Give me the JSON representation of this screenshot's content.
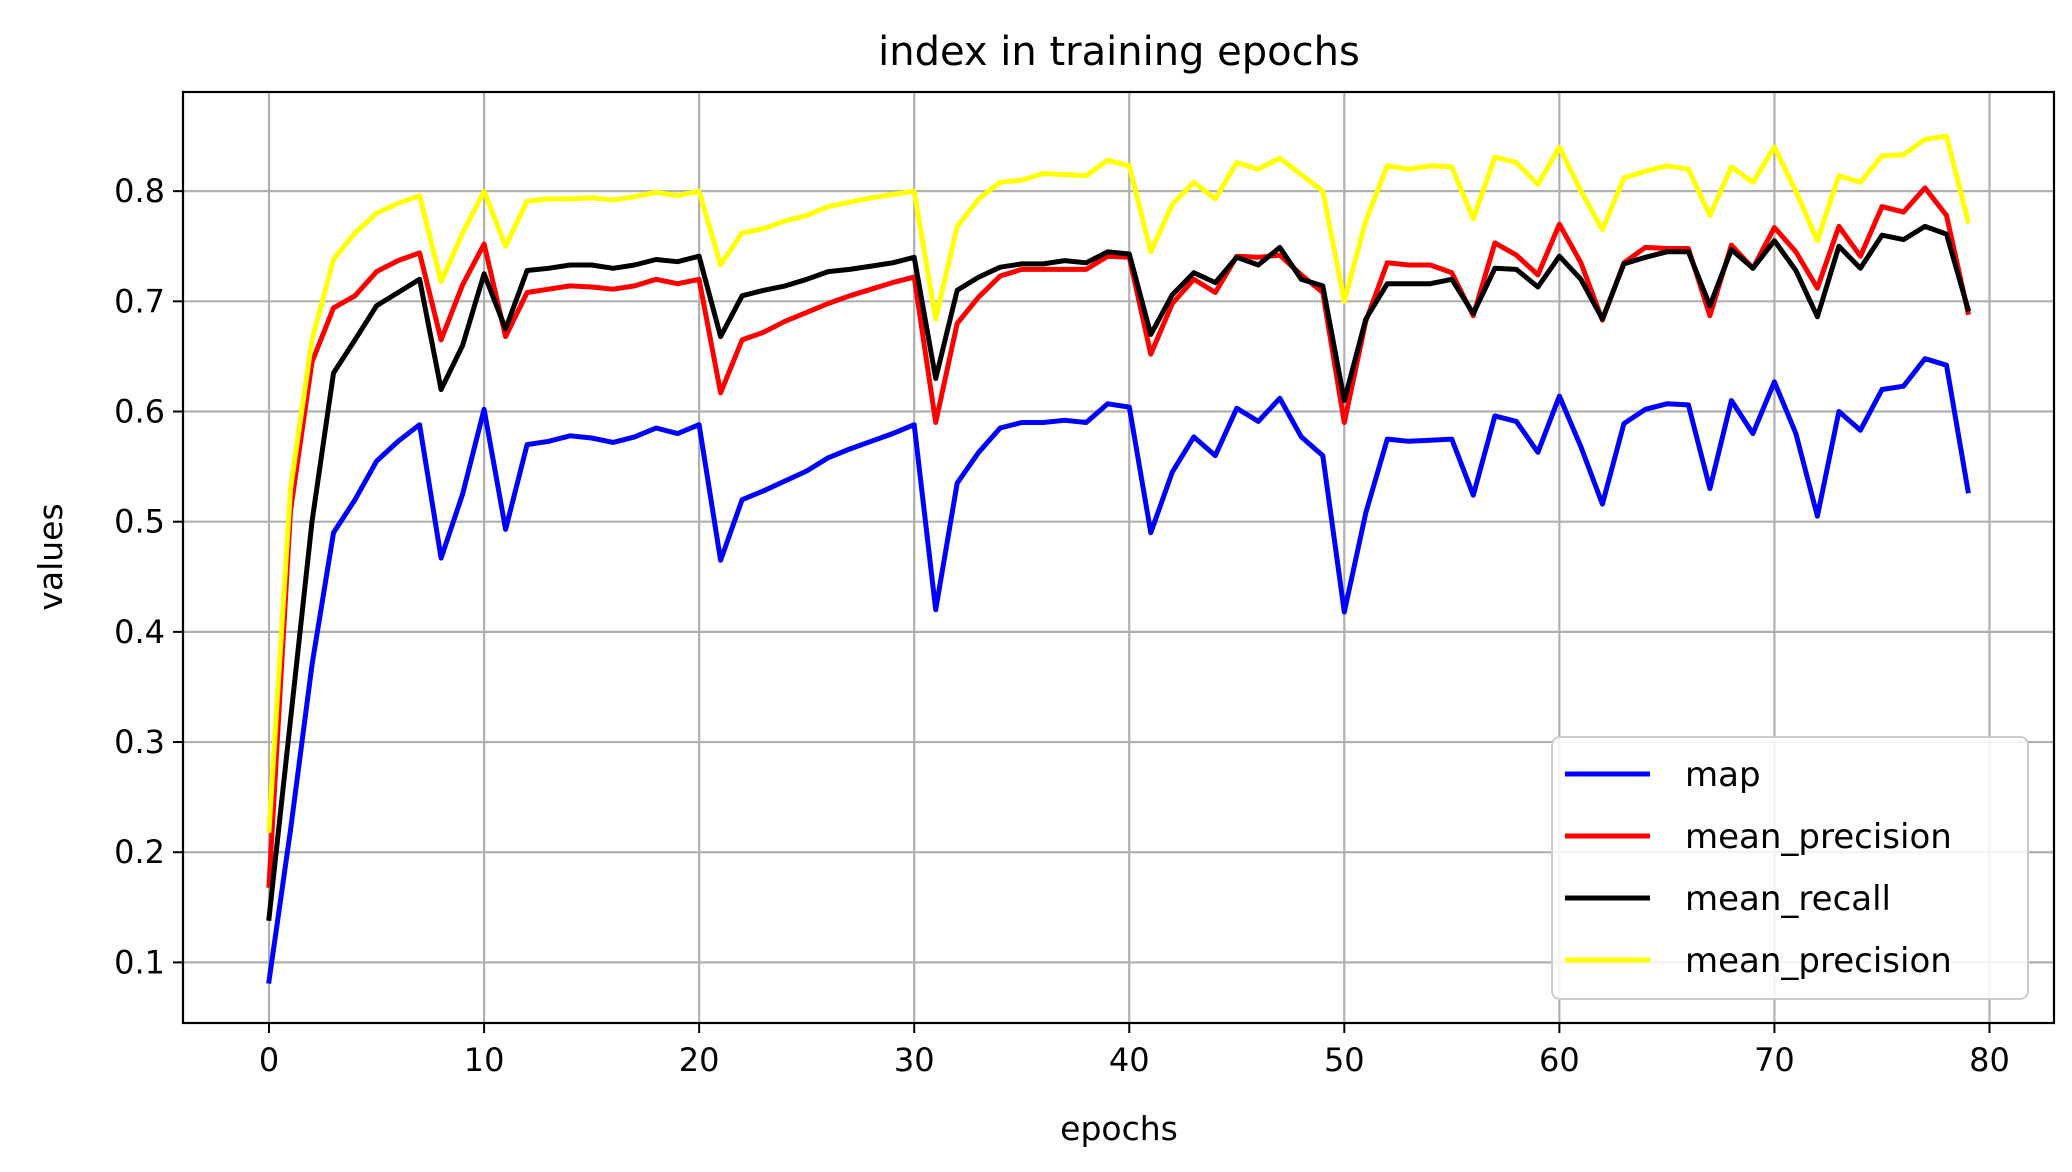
{
  "chart_data": {
    "type": "line",
    "title": "index in training epochs",
    "xlabel": "epochs",
    "ylabel": "values",
    "xlim": [
      -4,
      83
    ],
    "ylim": [
      0.045,
      0.89
    ],
    "xticks": [
      0,
      10,
      20,
      30,
      40,
      50,
      60,
      70,
      80
    ],
    "yticks": [
      0.1,
      0.2,
      0.3,
      0.4,
      0.5,
      0.6,
      0.7,
      0.8
    ],
    "xtick_labels": [
      "0",
      "10",
      "20",
      "30",
      "40",
      "50",
      "60",
      "70",
      "80"
    ],
    "ytick_labels": [
      "0.1",
      "0.2",
      "0.3",
      "0.4",
      "0.5",
      "0.6",
      "0.7",
      "0.8"
    ],
    "grid": true,
    "legend_position": "lower-right",
    "x": [
      0,
      1,
      2,
      3,
      4,
      5,
      6,
      7,
      8,
      9,
      10,
      11,
      12,
      13,
      14,
      15,
      16,
      17,
      18,
      19,
      20,
      21,
      22,
      23,
      24,
      25,
      26,
      27,
      28,
      29,
      30,
      31,
      32,
      33,
      34,
      35,
      36,
      37,
      38,
      39,
      40,
      41,
      42,
      43,
      44,
      45,
      46,
      47,
      48,
      49,
      50,
      51,
      52,
      53,
      54,
      55,
      56,
      57,
      58,
      59,
      60,
      61,
      62,
      63,
      64,
      65,
      66,
      67,
      68,
      69,
      70,
      71,
      72,
      73,
      74,
      75,
      76,
      77,
      78,
      79
    ],
    "series": [
      {
        "name": "map",
        "color": "#0000ff",
        "values": [
          0.083,
          0.22,
          0.37,
          0.49,
          0.52,
          0.555,
          0.573,
          0.588,
          0.467,
          0.525,
          0.602,
          0.493,
          0.57,
          0.573,
          0.578,
          0.576,
          0.572,
          0.577,
          0.585,
          0.58,
          0.588,
          0.465,
          0.52,
          0.528,
          0.537,
          0.546,
          0.558,
          0.566,
          0.573,
          0.58,
          0.588,
          0.42,
          0.535,
          0.563,
          0.585,
          0.59,
          0.59,
          0.592,
          0.59,
          0.607,
          0.604,
          0.49,
          0.545,
          0.577,
          0.56,
          0.603,
          0.591,
          0.612,
          0.577,
          0.56,
          0.418,
          0.508,
          0.575,
          0.573,
          0.574,
          0.575,
          0.524,
          0.596,
          0.591,
          0.563,
          0.614,
          0.568,
          0.516,
          0.589,
          0.602,
          0.607,
          0.606,
          0.53,
          0.61,
          0.58,
          0.627,
          0.58,
          0.505,
          0.6,
          0.583,
          0.62,
          0.623,
          0.648,
          0.642,
          0.528
        ]
      },
      {
        "name": "mean_precision",
        "color": "#ff0000",
        "values": [
          0.17,
          0.51,
          0.645,
          0.694,
          0.705,
          0.727,
          0.737,
          0.744,
          0.665,
          0.715,
          0.752,
          0.668,
          0.708,
          0.711,
          0.714,
          0.713,
          0.711,
          0.714,
          0.72,
          0.716,
          0.72,
          0.617,
          0.665,
          0.672,
          0.682,
          0.69,
          0.698,
          0.705,
          0.711,
          0.717,
          0.722,
          0.59,
          0.68,
          0.704,
          0.723,
          0.729,
          0.729,
          0.729,
          0.729,
          0.741,
          0.74,
          0.652,
          0.698,
          0.72,
          0.708,
          0.741,
          0.74,
          0.742,
          0.724,
          0.708,
          0.59,
          0.682,
          0.735,
          0.733,
          0.733,
          0.726,
          0.687,
          0.753,
          0.742,
          0.724,
          0.77,
          0.735,
          0.683,
          0.735,
          0.749,
          0.748,
          0.748,
          0.687,
          0.751,
          0.73,
          0.767,
          0.745,
          0.712,
          0.768,
          0.741,
          0.786,
          0.781,
          0.803,
          0.778,
          0.69
        ]
      },
      {
        "name": "mean_recall",
        "color": "#000000",
        "values": [
          0.14,
          0.32,
          0.5,
          0.635,
          0.665,
          0.696,
          0.708,
          0.72,
          0.62,
          0.66,
          0.725,
          0.675,
          0.728,
          0.73,
          0.733,
          0.733,
          0.73,
          0.733,
          0.738,
          0.736,
          0.741,
          0.668,
          0.705,
          0.71,
          0.714,
          0.72,
          0.727,
          0.729,
          0.732,
          0.735,
          0.74,
          0.63,
          0.71,
          0.722,
          0.731,
          0.734,
          0.734,
          0.737,
          0.735,
          0.745,
          0.743,
          0.67,
          0.706,
          0.726,
          0.717,
          0.74,
          0.733,
          0.749,
          0.72,
          0.714,
          0.61,
          0.684,
          0.716,
          0.716,
          0.716,
          0.72,
          0.689,
          0.73,
          0.729,
          0.713,
          0.741,
          0.72,
          0.684,
          0.734,
          0.74,
          0.745,
          0.745,
          0.696,
          0.747,
          0.73,
          0.755,
          0.728,
          0.686,
          0.75,
          0.73,
          0.76,
          0.756,
          0.768,
          0.761,
          0.693
        ]
      },
      {
        "name": "mean_precision",
        "color": "#ffff00",
        "values": [
          0.22,
          0.53,
          0.665,
          0.738,
          0.762,
          0.78,
          0.789,
          0.796,
          0.718,
          0.762,
          0.8,
          0.75,
          0.791,
          0.793,
          0.793,
          0.794,
          0.792,
          0.795,
          0.799,
          0.796,
          0.8,
          0.733,
          0.762,
          0.766,
          0.773,
          0.778,
          0.786,
          0.79,
          0.794,
          0.797,
          0.8,
          0.684,
          0.768,
          0.793,
          0.808,
          0.81,
          0.816,
          0.815,
          0.814,
          0.828,
          0.823,
          0.745,
          0.788,
          0.808,
          0.793,
          0.826,
          0.82,
          0.83,
          0.815,
          0.8,
          0.7,
          0.773,
          0.823,
          0.82,
          0.823,
          0.822,
          0.775,
          0.831,
          0.826,
          0.806,
          0.84,
          0.8,
          0.765,
          0.812,
          0.818,
          0.823,
          0.82,
          0.778,
          0.822,
          0.808,
          0.84,
          0.8,
          0.755,
          0.814,
          0.808,
          0.832,
          0.833,
          0.847,
          0.85,
          0.773
        ]
      }
    ]
  }
}
